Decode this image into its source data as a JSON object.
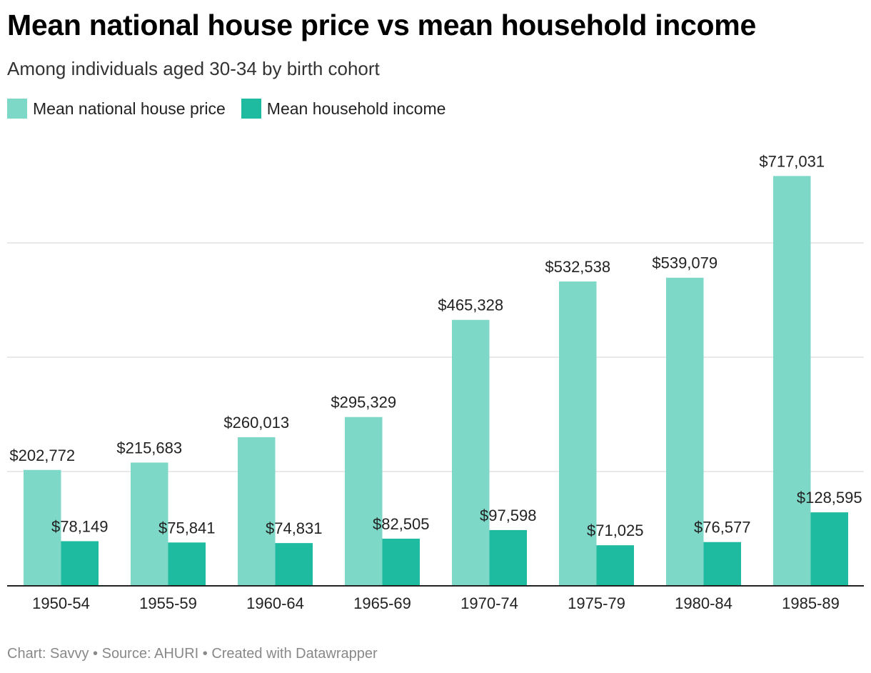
{
  "title": "Mean national house price vs mean household income",
  "subtitle": "Among individuals aged 30-34 by birth cohort",
  "footer": "Chart: Savvy • Source: AHURI • Created with Datawrapper",
  "colors": {
    "house_price": "#7dd8c8",
    "income": "#1fbba1",
    "grid": "#e2e2e2",
    "axis": "#222222"
  },
  "chart_data": {
    "type": "bar",
    "title": "Mean national house price vs mean household income",
    "subtitle": "Among individuals aged 30-34 by birth cohort",
    "xlabel": "",
    "ylabel": "",
    "ylim": [
      0,
      760000
    ],
    "grid": true,
    "gridlines": [
      200000,
      400000,
      600000
    ],
    "legend_position": "top-left",
    "categories": [
      "1950-54",
      "1955-59",
      "1960-64",
      "1965-69",
      "1970-74",
      "1975-79",
      "1980-84",
      "1985-89"
    ],
    "series": [
      {
        "name": "Mean national house price",
        "values": [
          202772,
          215683,
          260013,
          295329,
          465328,
          532538,
          539079,
          717031
        ],
        "labels": [
          "$202,772",
          "$215,683",
          "$260,013",
          "$295,329",
          "$465,328",
          "$532,538",
          "$539,079",
          "$717,031"
        ]
      },
      {
        "name": "Mean household income",
        "values": [
          78149,
          75841,
          74831,
          82505,
          97598,
          71025,
          76577,
          128595
        ],
        "labels": [
          "$78,149",
          "$75,841",
          "$74,831",
          "$82,505",
          "$97,598",
          "$71,025",
          "$76,577",
          "$128,595"
        ]
      }
    ]
  }
}
